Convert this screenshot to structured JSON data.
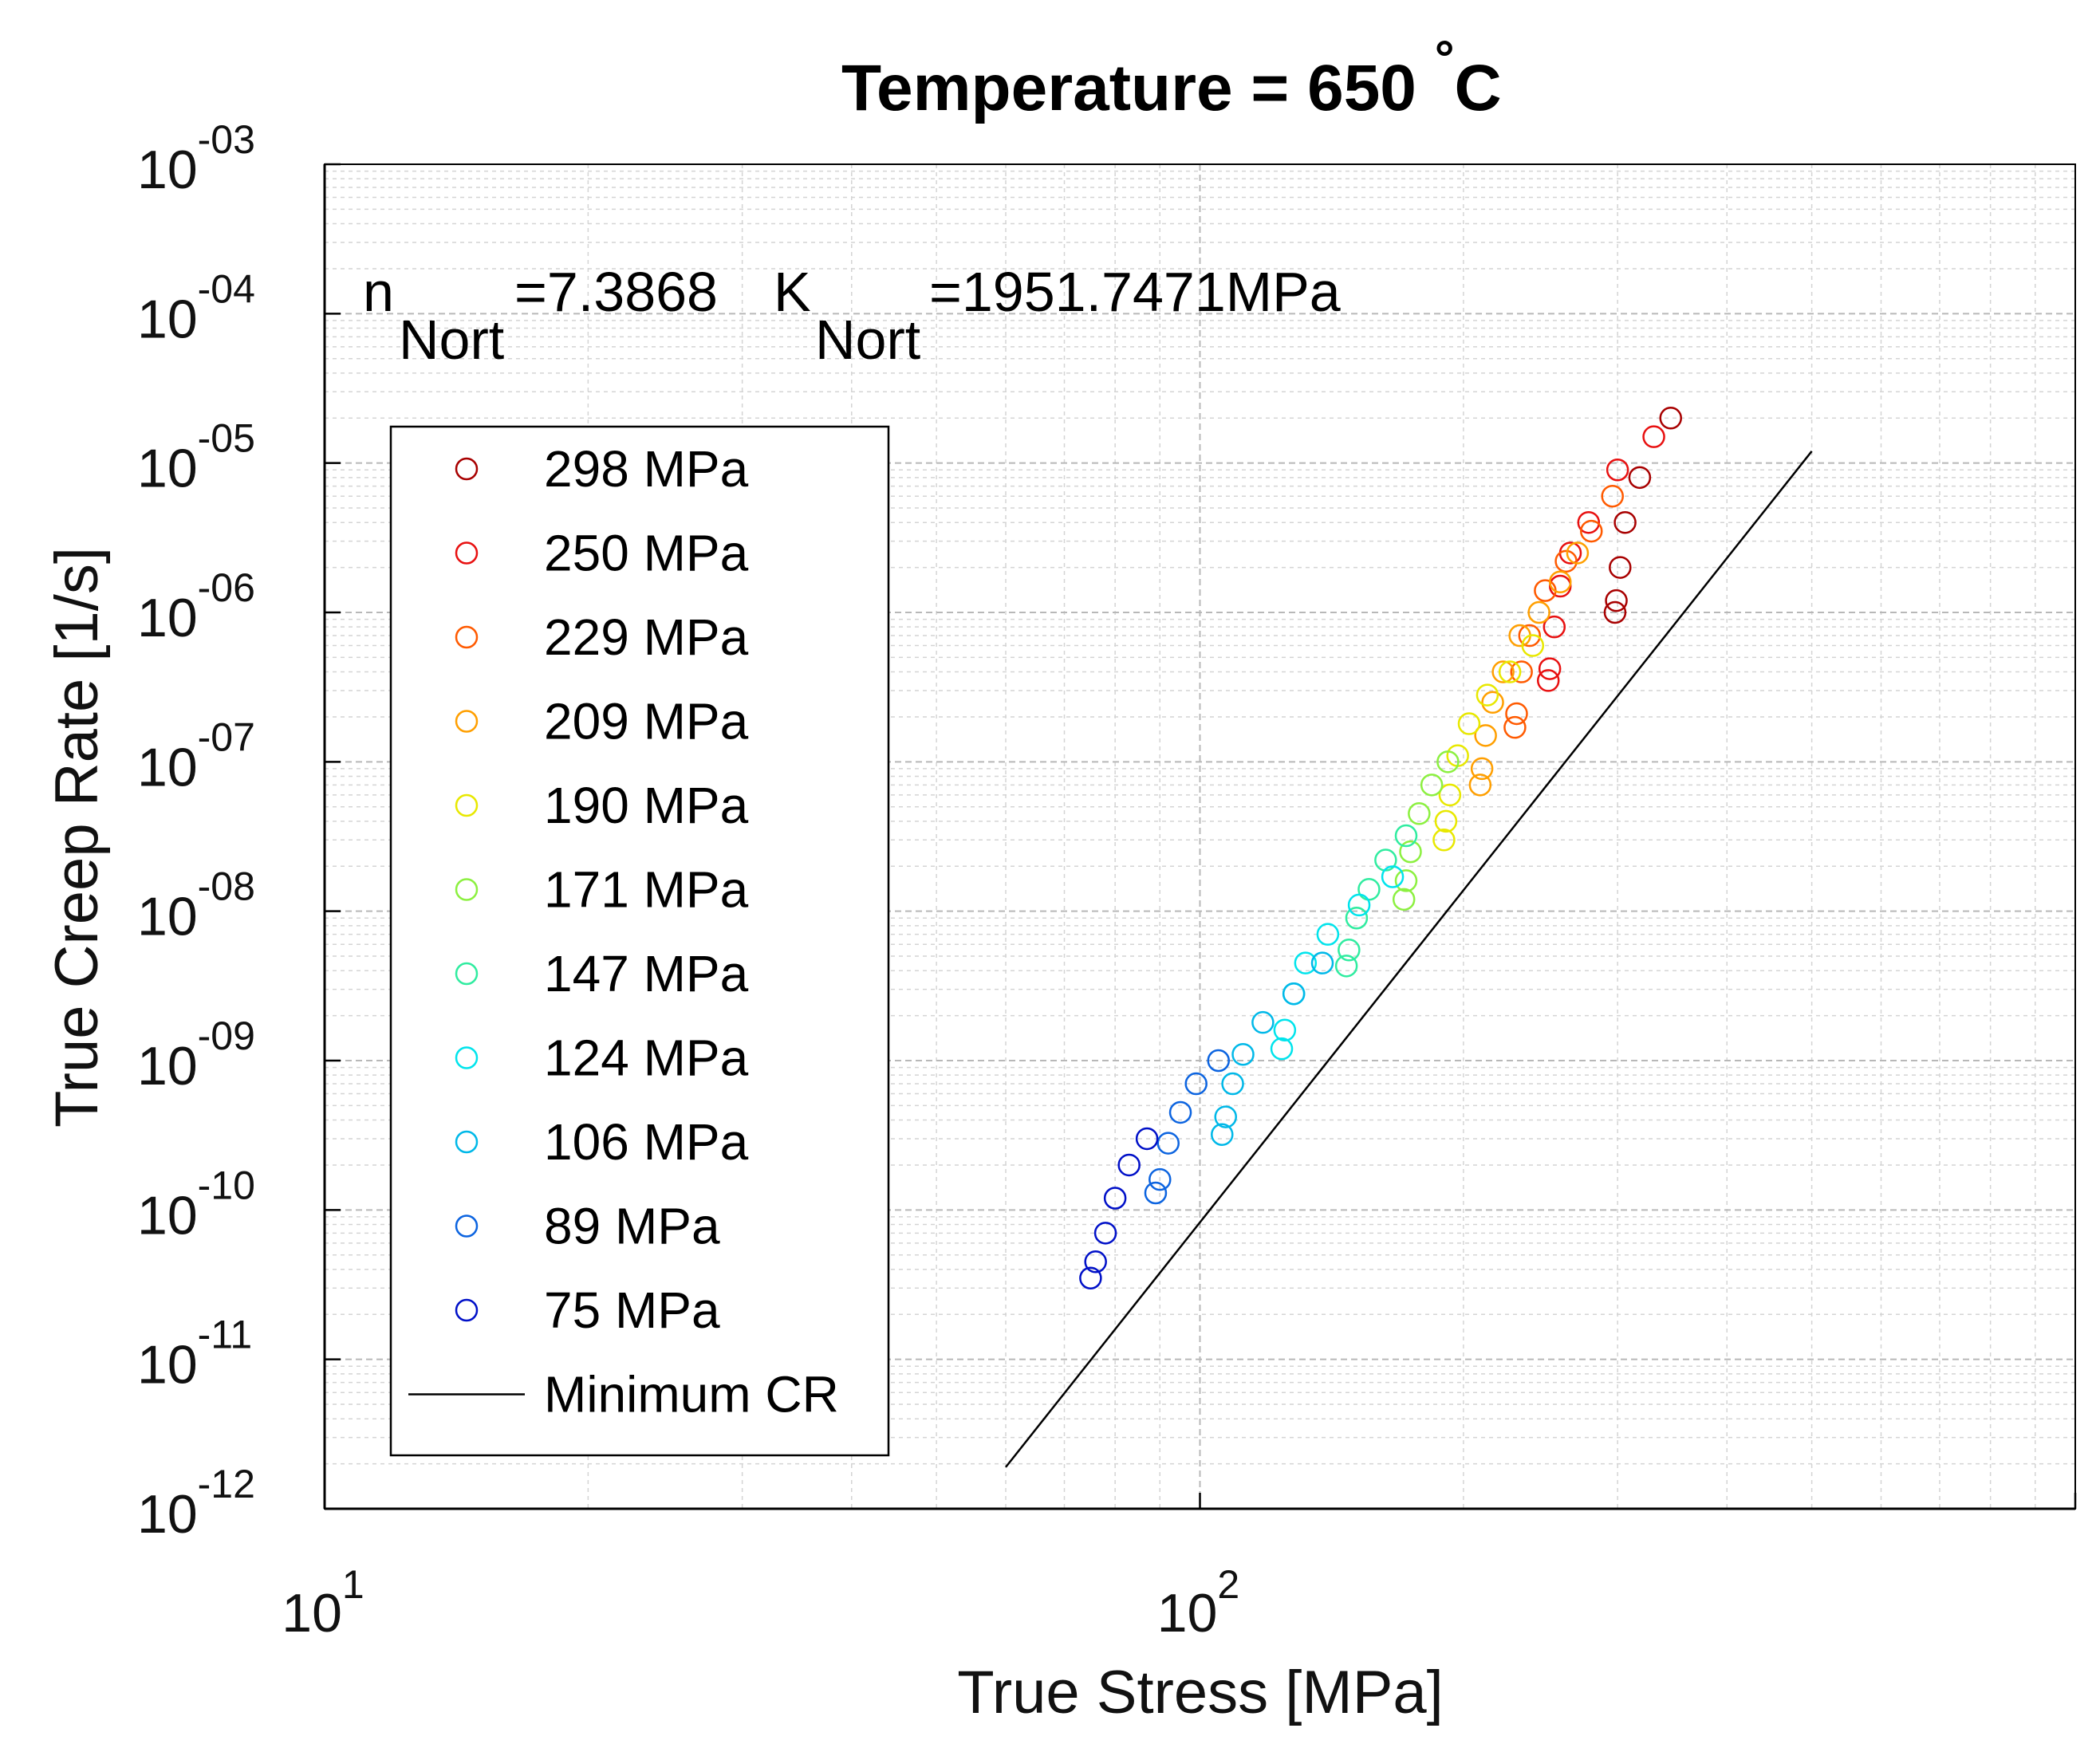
{
  "chart_data": {
    "type": "scatter",
    "title": "Temperature = 650 °C",
    "title_main": "Temperature = 650 ",
    "title_degree": "°",
    "title_unit": "C",
    "xlabel": "True Stress [MPa]",
    "ylabel": "True Creep Rate [1/s]",
    "xscale": "log",
    "yscale": "log",
    "xlim": [
      10,
      1000
    ],
    "ylim": [
      1e-12,
      0.001
    ],
    "grid": true,
    "legend_position": "left",
    "x_ticks": [
      {
        "value": 10,
        "base": "10",
        "exp": "1"
      },
      {
        "value": 100,
        "base": "10",
        "exp": "2"
      }
    ],
    "y_ticks": [
      {
        "value": 0.001,
        "base": "10",
        "exp": "-03"
      },
      {
        "value": 0.0001,
        "base": "10",
        "exp": "-04"
      },
      {
        "value": 1e-05,
        "base": "10",
        "exp": "-05"
      },
      {
        "value": 1e-06,
        "base": "10",
        "exp": "-06"
      },
      {
        "value": 1e-07,
        "base": "10",
        "exp": "-07"
      },
      {
        "value": 1e-08,
        "base": "10",
        "exp": "-08"
      },
      {
        "value": 1e-09,
        "base": "10",
        "exp": "-09"
      },
      {
        "value": 1e-10,
        "base": "10",
        "exp": "-10"
      },
      {
        "value": 1e-11,
        "base": "10",
        "exp": "-11"
      },
      {
        "value": 1e-12,
        "base": "10",
        "exp": "-12"
      }
    ],
    "annotation": {
      "n_label": "n",
      "n_sub": "Nort",
      "n_value": "=7.3868",
      "k_label": "K",
      "k_sub": "Nort",
      "k_value": "=1951.7471MPa",
      "n": 7.3868,
      "K": 1951.7471
    },
    "series": [
      {
        "name": "298 MPa",
        "stress": 298,
        "color": "#a80000",
        "x": [
          298,
          299,
          302,
          306,
          318,
          345
        ],
        "y": [
          1e-06,
          1.2e-06,
          2e-06,
          4e-06,
          8e-06,
          2e-05
        ]
      },
      {
        "name": "250 MPa",
        "stress": 250,
        "color": "#e81010",
        "x": [
          250,
          251,
          254,
          258,
          265,
          278,
          300,
          330
        ],
        "y": [
          3.5e-07,
          4.2e-07,
          8e-07,
          1.5e-06,
          2.5e-06,
          4e-06,
          9e-06,
          1.5e-05
        ]
      },
      {
        "name": "229 MPa",
        "stress": 229,
        "color": "#ff5a00",
        "x": [
          229,
          230,
          233,
          238,
          248,
          262,
          280,
          296
        ],
        "y": [
          1.7e-07,
          2.1e-07,
          4e-07,
          7e-07,
          1.4e-06,
          2.2e-06,
          3.5e-06,
          6e-06
        ]
      },
      {
        "name": "209 MPa",
        "stress": 209,
        "color": "#ff9f00",
        "x": [
          209,
          210,
          212,
          216,
          222,
          232,
          244,
          258,
          270
        ],
        "y": [
          7e-08,
          9e-08,
          1.5e-07,
          2.5e-07,
          4e-07,
          7e-07,
          1e-06,
          1.6e-06,
          2.5e-06
        ]
      },
      {
        "name": "190 MPa",
        "stress": 190,
        "color": "#e8e800",
        "x": [
          190,
          191,
          193,
          197,
          203,
          213,
          226,
          240
        ],
        "y": [
          3e-08,
          4e-08,
          6e-08,
          1.1e-07,
          1.8e-07,
          2.8e-07,
          4e-07,
          6e-07
        ]
      },
      {
        "name": "171 MPa",
        "stress": 171,
        "color": "#8cf040",
        "x": [
          171,
          172,
          174,
          178,
          184,
          192
        ],
        "y": [
          1.2e-08,
          1.6e-08,
          2.5e-08,
          4.5e-08,
          7e-08,
          1e-07
        ]
      },
      {
        "name": "147 MPa",
        "stress": 147,
        "color": "#30eca0",
        "x": [
          147,
          148,
          151,
          156,
          163,
          172
        ],
        "y": [
          4.3e-09,
          5.5e-09,
          9e-09,
          1.4e-08,
          2.2e-08,
          3.2e-08
        ]
      },
      {
        "name": "124 MPa",
        "stress": 124,
        "color": "#00e4ec",
        "x": [
          124,
          125,
          128,
          132,
          140,
          152,
          166
        ],
        "y": [
          1.2e-09,
          1.6e-09,
          2.8e-09,
          4.5e-09,
          7e-09,
          1.1e-08,
          1.7e-08
        ]
      },
      {
        "name": "106 MPa",
        "stress": 106,
        "color": "#00b8e8",
        "x": [
          106,
          107,
          109,
          112,
          118,
          128,
          138
        ],
        "y": [
          3.2e-10,
          4.2e-10,
          7e-10,
          1.1e-09,
          1.8e-09,
          2.8e-09,
          4.5e-09
        ]
      },
      {
        "name": "89 MPa",
        "stress": 89,
        "color": "#0c64e0",
        "x": [
          89,
          90,
          92,
          95,
          99,
          105
        ],
        "y": [
          1.3e-10,
          1.6e-10,
          2.8e-10,
          4.5e-10,
          7e-10,
          1e-09
        ]
      },
      {
        "name": "75 MPa",
        "stress": 75,
        "color": "#0010c8",
        "x": [
          75,
          76,
          78,
          80,
          83,
          87
        ],
        "y": [
          3.5e-11,
          4.5e-11,
          7e-11,
          1.2e-10,
          2e-10,
          3e-10
        ]
      }
    ],
    "fit_line": {
      "name": "Minimum CR",
      "color": "#000000",
      "x": [
        60,
        500
      ],
      "y": [
        1.9e-12,
        1.2e-05
      ]
    }
  }
}
